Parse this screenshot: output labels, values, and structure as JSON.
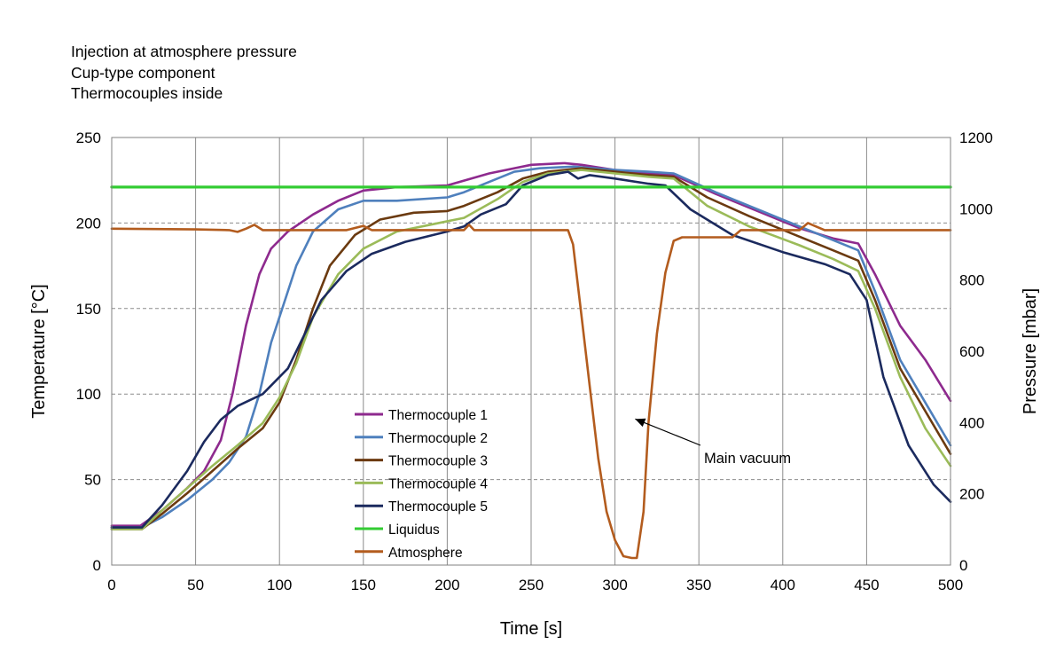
{
  "notes": [
    "Injection at atmosphere pressure",
    "Cup-type component",
    "Thermocouples inside"
  ],
  "chart_data": {
    "type": "line",
    "xlabel": "Time [s]",
    "ylabel": "Temperature [°C]",
    "y2label": "Pressure [mbar]",
    "xlim": [
      0,
      500
    ],
    "ylim": [
      0,
      250
    ],
    "y2lim": [
      0,
      1200
    ],
    "xticks": [
      "0",
      "50",
      "100",
      "150",
      "200",
      "250",
      "300",
      "350",
      "400",
      "450",
      "500"
    ],
    "yticks": [
      "0",
      "50",
      "100",
      "150",
      "200",
      "250"
    ],
    "y2ticks": [
      "0",
      "200",
      "400",
      "600",
      "800",
      "1000",
      "1200"
    ],
    "grid": {
      "x": "solid",
      "y": "dashed"
    },
    "legend_position": "center-left",
    "series": [
      {
        "name": "Thermocouple 1",
        "color": "#8e2a8e",
        "axis": "left",
        "points": [
          [
            0,
            23
          ],
          [
            17,
            23
          ],
          [
            30,
            32
          ],
          [
            45,
            45
          ],
          [
            55,
            55
          ],
          [
            65,
            73
          ],
          [
            72,
            100
          ],
          [
            80,
            140
          ],
          [
            88,
            170
          ],
          [
            95,
            185
          ],
          [
            105,
            195
          ],
          [
            120,
            205
          ],
          [
            135,
            213
          ],
          [
            150,
            219
          ],
          [
            170,
            221
          ],
          [
            200,
            222
          ],
          [
            225,
            229
          ],
          [
            250,
            234
          ],
          [
            270,
            235
          ],
          [
            280,
            234
          ],
          [
            300,
            231
          ],
          [
            320,
            229
          ],
          [
            335,
            228
          ],
          [
            360,
            217
          ],
          [
            390,
            205
          ],
          [
            410,
            197
          ],
          [
            430,
            191
          ],
          [
            445,
            188
          ],
          [
            455,
            170
          ],
          [
            470,
            140
          ],
          [
            485,
            120
          ],
          [
            500,
            96
          ]
        ]
      },
      {
        "name": "Thermocouple 2",
        "color": "#4f80bd",
        "axis": "left",
        "points": [
          [
            0,
            22
          ],
          [
            18,
            22
          ],
          [
            30,
            28
          ],
          [
            45,
            38
          ],
          [
            60,
            50
          ],
          [
            70,
            60
          ],
          [
            80,
            75
          ],
          [
            88,
            100
          ],
          [
            95,
            130
          ],
          [
            100,
            145
          ],
          [
            110,
            175
          ],
          [
            120,
            195
          ],
          [
            135,
            208
          ],
          [
            150,
            213
          ],
          [
            170,
            213
          ],
          [
            200,
            215
          ],
          [
            210,
            218
          ],
          [
            225,
            224
          ],
          [
            240,
            230
          ],
          [
            255,
            232
          ],
          [
            275,
            233
          ],
          [
            300,
            231
          ],
          [
            320,
            230
          ],
          [
            335,
            229
          ],
          [
            360,
            218
          ],
          [
            390,
            206
          ],
          [
            410,
            198
          ],
          [
            430,
            190
          ],
          [
            445,
            184
          ],
          [
            455,
            160
          ],
          [
            470,
            120
          ],
          [
            485,
            95
          ],
          [
            500,
            70
          ]
        ]
      },
      {
        "name": "Thermocouple 3",
        "color": "#6b3a10",
        "axis": "left",
        "points": [
          [
            0,
            21
          ],
          [
            18,
            21
          ],
          [
            30,
            30
          ],
          [
            45,
            42
          ],
          [
            60,
            55
          ],
          [
            75,
            68
          ],
          [
            90,
            80
          ],
          [
            100,
            95
          ],
          [
            110,
            120
          ],
          [
            120,
            150
          ],
          [
            130,
            175
          ],
          [
            145,
            193
          ],
          [
            160,
            202
          ],
          [
            180,
            206
          ],
          [
            200,
            207
          ],
          [
            210,
            210
          ],
          [
            230,
            218
          ],
          [
            245,
            226
          ],
          [
            260,
            230
          ],
          [
            280,
            232
          ],
          [
            300,
            230
          ],
          [
            320,
            228
          ],
          [
            335,
            227
          ],
          [
            355,
            215
          ],
          [
            380,
            204
          ],
          [
            410,
            192
          ],
          [
            430,
            184
          ],
          [
            445,
            178
          ],
          [
            455,
            155
          ],
          [
            470,
            115
          ],
          [
            485,
            90
          ],
          [
            500,
            65
          ]
        ]
      },
      {
        "name": "Thermocouple 4",
        "color": "#9bbb59",
        "axis": "left",
        "points": [
          [
            0,
            21
          ],
          [
            18,
            21
          ],
          [
            30,
            32
          ],
          [
            45,
            45
          ],
          [
            60,
            58
          ],
          [
            75,
            70
          ],
          [
            90,
            83
          ],
          [
            100,
            98
          ],
          [
            110,
            118
          ],
          [
            120,
            145
          ],
          [
            135,
            170
          ],
          [
            150,
            185
          ],
          [
            170,
            195
          ],
          [
            190,
            199
          ],
          [
            210,
            203
          ],
          [
            230,
            214
          ],
          [
            245,
            224
          ],
          [
            260,
            229
          ],
          [
            280,
            231
          ],
          [
            300,
            229
          ],
          [
            320,
            227
          ],
          [
            335,
            226
          ],
          [
            355,
            210
          ],
          [
            380,
            198
          ],
          [
            410,
            187
          ],
          [
            430,
            179
          ],
          [
            445,
            172
          ],
          [
            455,
            150
          ],
          [
            470,
            110
          ],
          [
            485,
            80
          ],
          [
            500,
            58
          ]
        ]
      },
      {
        "name": "Thermocouple 5",
        "color": "#1b2a5e",
        "axis": "left",
        "points": [
          [
            0,
            22
          ],
          [
            18,
            22
          ],
          [
            30,
            35
          ],
          [
            45,
            55
          ],
          [
            55,
            72
          ],
          [
            65,
            85
          ],
          [
            75,
            93
          ],
          [
            90,
            100
          ],
          [
            105,
            115
          ],
          [
            115,
            135
          ],
          [
            125,
            155
          ],
          [
            140,
            172
          ],
          [
            155,
            182
          ],
          [
            175,
            189
          ],
          [
            200,
            195
          ],
          [
            210,
            198
          ],
          [
            220,
            205
          ],
          [
            235,
            211
          ],
          [
            245,
            222
          ],
          [
            260,
            228
          ],
          [
            272,
            230
          ],
          [
            278,
            226
          ],
          [
            285,
            228
          ],
          [
            300,
            226
          ],
          [
            320,
            223
          ],
          [
            330,
            222
          ],
          [
            345,
            208
          ],
          [
            370,
            193
          ],
          [
            400,
            183
          ],
          [
            425,
            176
          ],
          [
            440,
            170
          ],
          [
            450,
            155
          ],
          [
            460,
            110
          ],
          [
            475,
            70
          ],
          [
            490,
            47
          ],
          [
            500,
            37
          ]
        ]
      },
      {
        "name": "Liquidus",
        "color": "#33cc33",
        "axis": "left",
        "points": [
          [
            0,
            221
          ],
          [
            500,
            221
          ]
        ]
      },
      {
        "name": "Atmosphere",
        "color": "#b35c1e",
        "axis": "right",
        "points": [
          [
            0,
            944
          ],
          [
            50,
            942
          ],
          [
            70,
            940
          ],
          [
            75,
            935
          ],
          [
            80,
            944
          ],
          [
            85,
            955
          ],
          [
            90,
            940
          ],
          [
            140,
            940
          ],
          [
            150,
            952
          ],
          [
            155,
            940
          ],
          [
            190,
            940
          ],
          [
            210,
            940
          ],
          [
            213,
            955
          ],
          [
            216,
            940
          ],
          [
            250,
            940
          ],
          [
            272,
            940
          ],
          [
            275,
            900
          ],
          [
            280,
            700
          ],
          [
            285,
            500
          ],
          [
            290,
            300
          ],
          [
            295,
            150
          ],
          [
            300,
            70
          ],
          [
            305,
            25
          ],
          [
            310,
            20
          ],
          [
            313,
            20
          ],
          [
            317,
            150
          ],
          [
            320,
            400
          ],
          [
            325,
            650
          ],
          [
            330,
            820
          ],
          [
            335,
            910
          ],
          [
            340,
            920
          ],
          [
            370,
            920
          ],
          [
            375,
            940
          ],
          [
            410,
            940
          ],
          [
            415,
            960
          ],
          [
            420,
            950
          ],
          [
            425,
            940
          ],
          [
            500,
            940
          ]
        ]
      }
    ],
    "annotations": [
      {
        "text": "Main vacuum",
        "points_to": [
          311,
          410
        ]
      }
    ]
  }
}
